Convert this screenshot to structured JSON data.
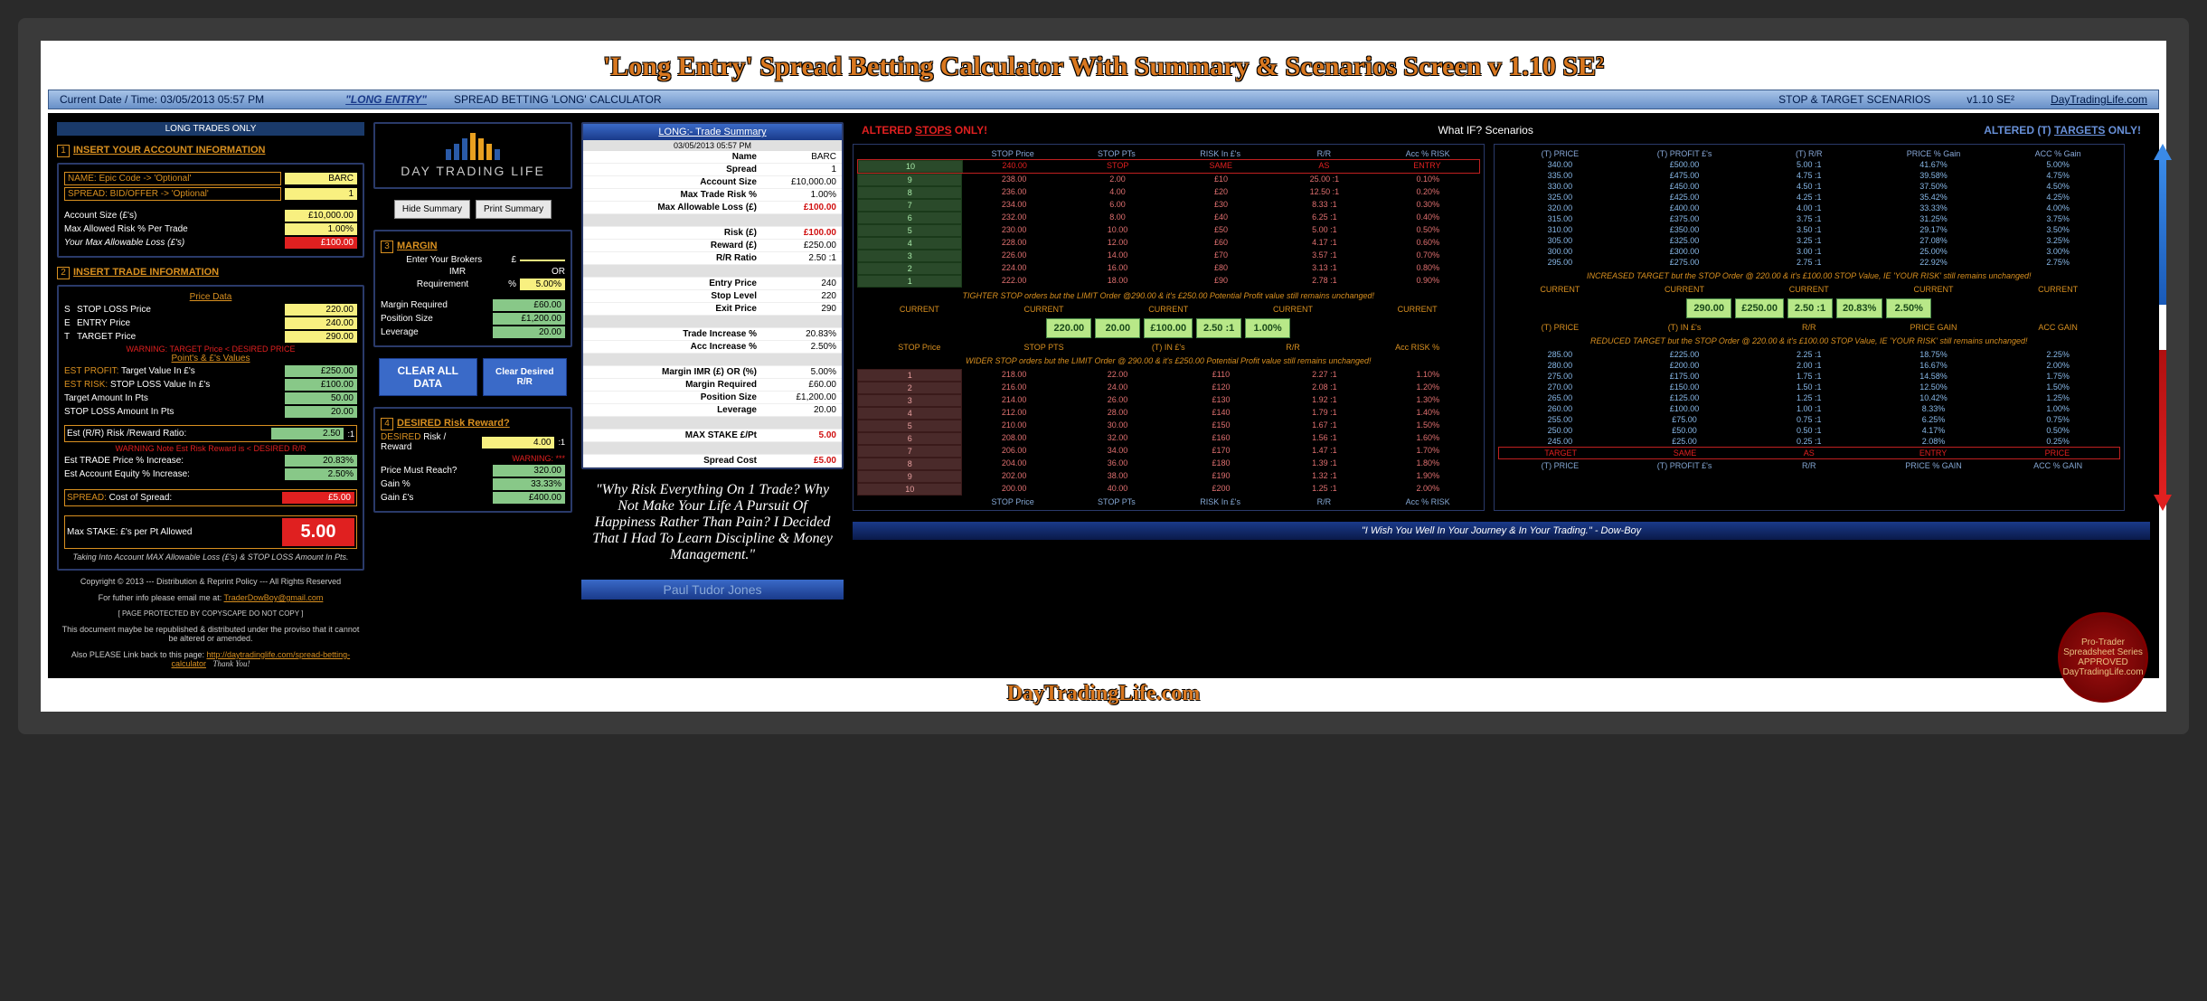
{
  "title": "'Long Entry' Spread Betting Calculator With Summary & Scenarios Screen v 1.10 SE²",
  "topbar": {
    "datetime_label": "Current Date / Time:",
    "datetime": "03/05/2013   05:57 PM",
    "longentry": "\"LONG ENTRY\"",
    "calc_title": "SPREAD BETTING 'LONG' CALCULATOR",
    "scenarios": "STOP & TARGET SCENARIOS",
    "version": "v1.10 SE²",
    "site": "DayTradingLife.com"
  },
  "long_trades_only": "LONG TRADES ONLY",
  "sec1_title": "INSERT YOUR ACCOUNT INFORMATION",
  "name_lbl": "NAME: Epic Code -> 'Optional'",
  "name_val": "BARC",
  "spread_lbl": "SPREAD: BID/OFFER -> 'Optional'",
  "spread_val": "1",
  "acct_size_lbl": "Account Size (£'s)",
  "acct_size_val": "£10,000.00",
  "max_risk_lbl": "Max Allowed Risk % Per Trade",
  "max_risk_val": "1.00%",
  "max_loss_lbl": "Your Max Allowable Loss (£'s)",
  "max_loss_val": "£100.00",
  "sec2_title": "INSERT TRADE INFORMATION",
  "price_data": "Price Data",
  "stop_price_lbl": "STOP LOSS Price",
  "stop_price_val": "220.00",
  "entry_price_lbl": "ENTRY Price",
  "entry_price_val": "240.00",
  "target_price_lbl": "TARGET  Price",
  "target_price_val": "290.00",
  "warn1": "WARNING: TARGET Price < DESIRED PRICE",
  "points_values": "Point's & £'s Values",
  "est_profit_lbl": "EST PROFIT: Target Value In £'s",
  "est_profit_val": "£250.00",
  "est_risk_lbl": "EST RISK: STOP LOSS Value In £'s",
  "est_risk_val": "£100.00",
  "target_pts_lbl": "Target Amount In Pts",
  "target_pts_val": "50.00",
  "stop_pts_lbl": "STOP LOSS Amount In Pts",
  "stop_pts_val": "20.00",
  "rr_lbl": "Est (R/R) Risk /Reward Ratio:",
  "rr_val": "2.50",
  "warn2": "WARNING Note Est Risk Reward is < DESIRED R/R",
  "trade_inc_lbl": "Est TRADE Price % Increase:",
  "trade_inc_val": "20.83%",
  "equity_inc_lbl": "Est Account Equity % Increase:",
  "equity_inc_val": "2.50%",
  "spread_cost_lbl": "SPREAD: Cost of Spread:",
  "spread_cost_val": "£5.00",
  "max_stake_lbl": "Max STAKE:  £'s per Pt Allowed",
  "max_stake_val": "5.00",
  "max_stake_note": "Taking Into Account MAX Allowable Loss (£'s) & STOP LOSS Amount In Pts.",
  "logo_text": "DAY TRADING LIFE",
  "hide_summary": "Hide Summary",
  "print_summary": "Print Summary",
  "margin_title": "MARGIN",
  "broker_lbl": "Enter Your Brokers",
  "imr_lbl": "IMR",
  "req_lbl": "Requirement",
  "imr_pct": "5.00%",
  "or_lbl": "OR",
  "margin_req_lbl": "Margin Required",
  "margin_req_val": "£60.00",
  "pos_size_lbl": "Position Size",
  "pos_size_val": "£1,200.00",
  "leverage_lbl": "Leverage",
  "leverage_val": "20.00",
  "clear_all": "CLEAR ALL DATA",
  "clear_rr": "Clear Desired R/R",
  "desired_title": "DESIRED Risk Reward?",
  "desired_rr_lbl": "DESIRED Risk / Reward",
  "desired_rr_val": "4.00",
  "warn3": "WARNING: ***",
  "price_reach_lbl": "Price Must Reach?",
  "price_reach_val": "320.00",
  "gain_pct_lbl": "Gain %",
  "gain_pct_val": "33.33%",
  "gain_gbp_lbl": "Gain £'s",
  "gain_gbp_val": "£400.00",
  "copyright": "Copyright © 2013  --- Distribution & Reprint Policy --- All Rights Reserved",
  "email_line": "For futher info please email me at: ",
  "email": "TraderDowBoy@gmail.com",
  "copyscape": "[ PAGE PROTECTED BY COPYSCAPE  DO NOT COPY ]",
  "doc_note": "This document maybe be republished & distributed under the proviso that it cannot be altered or amended.",
  "link_back": "Also PLEASE Link back to this page: ",
  "link_url": "http://daytradinglife.com/spread-betting-calculator",
  "thank_you": "Thank You!",
  "summary_title": "LONG:- Trade Summary",
  "summary_dt": "03/05/2013  05:57 PM",
  "s_rows": [
    {
      "l": "Name",
      "v": "BARC"
    },
    {
      "l": "Spread",
      "v": "1"
    },
    {
      "l": "Account Size",
      "v": "£10,000.00"
    },
    {
      "l": "Max Trade Risk %",
      "v": "1.00%"
    },
    {
      "l": "Max Allowable Loss (£)",
      "v": "£100.00",
      "red": true
    },
    {
      "gap": true
    },
    {
      "l": "Risk (£)",
      "v": "£100.00",
      "red": true
    },
    {
      "l": "Reward (£)",
      "v": "£250.00"
    },
    {
      "l": "R/R Ratio",
      "v": "2.50 :1"
    },
    {
      "gap": true
    },
    {
      "l": "Entry Price",
      "v": "240"
    },
    {
      "l": "Stop Level",
      "v": "220"
    },
    {
      "l": "Exit Price",
      "v": "290"
    },
    {
      "gap": true
    },
    {
      "l": "Trade Increase %",
      "v": "20.83%"
    },
    {
      "l": "Acc Increase %",
      "v": "2.50%"
    },
    {
      "gap": true
    },
    {
      "l": "Margin IMR (£) OR (%)",
      "v": "5.00%"
    },
    {
      "l": "Margin Required",
      "v": "£60.00"
    },
    {
      "l": "Position Size",
      "v": "£1,200.00"
    },
    {
      "l": "Leverage",
      "v": "20.00"
    },
    {
      "gap": true
    },
    {
      "l": "MAX STAKE  £/Pt",
      "v": "5.00",
      "red": true
    },
    {
      "gap": true
    },
    {
      "l": "Spread Cost",
      "v": "£5.00",
      "red": true
    }
  ],
  "quote": "\"Why Risk Everything On 1 Trade? Why Not Make Your Life A Pursuit Of Happiness Rather Than Pain? I Decided That I Had To Learn Discipline & Money Management.\"",
  "quote_author": "Paul Tudor Jones",
  "scen_stops_hdr": "ALTERED STOPS ONLY!",
  "scen_whatif": "What IF? Scenarios",
  "scen_targets_hdr": "ALTERED (T) TARGETS ONLY!",
  "left_th": [
    "STOP Price",
    "STOP PTs",
    "RISK In £'s",
    "R/R",
    "Acc % RISK"
  ],
  "right_th": [
    "(T) PRICE",
    "(T) PROFIT £'s",
    "(T) R/R",
    "PRICE % Gain",
    "ACC % Gain"
  ],
  "left_top": [
    {
      "n": "10",
      "c": [
        "240.00",
        "STOP",
        "SAME",
        "AS",
        "ENTRY"
      ],
      "spec": "red-border"
    },
    {
      "n": "9",
      "c": [
        "238.00",
        "2.00",
        "£10",
        "25.00 :1",
        "0.10%"
      ]
    },
    {
      "n": "8",
      "c": [
        "236.00",
        "4.00",
        "£20",
        "12.50 :1",
        "0.20%"
      ]
    },
    {
      "n": "7",
      "c": [
        "234.00",
        "6.00",
        "£30",
        "8.33 :1",
        "0.30%"
      ]
    },
    {
      "n": "6",
      "c": [
        "232.00",
        "8.00",
        "£40",
        "6.25 :1",
        "0.40%"
      ]
    },
    {
      "n": "5",
      "c": [
        "230.00",
        "10.00",
        "£50",
        "5.00 :1",
        "0.50%"
      ]
    },
    {
      "n": "4",
      "c": [
        "228.00",
        "12.00",
        "£60",
        "4.17 :1",
        "0.60%"
      ]
    },
    {
      "n": "3",
      "c": [
        "226.00",
        "14.00",
        "£70",
        "3.57 :1",
        "0.70%"
      ]
    },
    {
      "n": "2",
      "c": [
        "224.00",
        "16.00",
        "£80",
        "3.13 :1",
        "0.80%"
      ]
    },
    {
      "n": "1",
      "c": [
        "222.00",
        "18.00",
        "£90",
        "2.78 :1",
        "0.90%"
      ]
    }
  ],
  "right_top": [
    {
      "c": [
        "340.00",
        "£500.00",
        "5.00 :1",
        "41.67%",
        "5.00%"
      ]
    },
    {
      "c": [
        "335.00",
        "£475.00",
        "4.75 :1",
        "39.58%",
        "4.75%"
      ]
    },
    {
      "c": [
        "330.00",
        "£450.00",
        "4.50 :1",
        "37.50%",
        "4.50%"
      ]
    },
    {
      "c": [
        "325.00",
        "£425.00",
        "4.25 :1",
        "35.42%",
        "4.25%"
      ]
    },
    {
      "c": [
        "320.00",
        "£400.00",
        "4.00 :1",
        "33.33%",
        "4.00%"
      ]
    },
    {
      "c": [
        "315.00",
        "£375.00",
        "3.75 :1",
        "31.25%",
        "3.75%"
      ]
    },
    {
      "c": [
        "310.00",
        "£350.00",
        "3.50 :1",
        "29.17%",
        "3.50%"
      ]
    },
    {
      "c": [
        "305.00",
        "£325.00",
        "3.25 :1",
        "27.08%",
        "3.25%"
      ]
    },
    {
      "c": [
        "300.00",
        "£300.00",
        "3.00 :1",
        "25.00%",
        "3.00%"
      ]
    },
    {
      "c": [
        "295.00",
        "£275.00",
        "2.75 :1",
        "22.92%",
        "2.75%"
      ]
    }
  ],
  "left_note1": "TIGHTER STOP orders but the LIMIT Order @290.00 & it's £250.00 Potential Profit value still remains unchanged!",
  "right_note1": "INCREASED TARGET but the STOP Order @ 220.00 & it's £100.00 STOP Value, IE 'YOUR RISK' still remains unchanged!",
  "left_current_lbls": [
    "CURRENT",
    "CURRENT",
    "CURRENT",
    "CURRENT",
    "CURRENT"
  ],
  "left_current_vals": [
    "220.00",
    "20.00",
    "£100.00",
    "2.50 :1",
    "1.00%"
  ],
  "left_current_sub": [
    "STOP Price",
    "STOP PTS",
    "(T) IN £'s",
    "R/R",
    "Acc RISK %"
  ],
  "right_current_vals": [
    "290.00",
    "£250.00",
    "2.50 :1",
    "20.83%",
    "2.50%"
  ],
  "right_current_sub": [
    "(T) PRICE",
    "(T) IN £'s",
    "R/R",
    "PRICE GAIN",
    "ACC GAIN"
  ],
  "left_note2": "WIDER STOP orders but the LIMIT Order @ 290.00 & it's £250.00 Potential Profit value still remains unchanged!",
  "right_note2": "REDUCED TARGET but the STOP Order @ 220.00 & it's £100.00 STOP Value, IE 'YOUR RISK' still remains unchanged!",
  "left_bot": [
    {
      "n": "1",
      "c": [
        "218.00",
        "22.00",
        "£110",
        "2.27 :1",
        "1.10%"
      ]
    },
    {
      "n": "2",
      "c": [
        "216.00",
        "24.00",
        "£120",
        "2.08 :1",
        "1.20%"
      ]
    },
    {
      "n": "3",
      "c": [
        "214.00",
        "26.00",
        "£130",
        "1.92 :1",
        "1.30%"
      ]
    },
    {
      "n": "4",
      "c": [
        "212.00",
        "28.00",
        "£140",
        "1.79 :1",
        "1.40%"
      ]
    },
    {
      "n": "5",
      "c": [
        "210.00",
        "30.00",
        "£150",
        "1.67 :1",
        "1.50%"
      ]
    },
    {
      "n": "6",
      "c": [
        "208.00",
        "32.00",
        "£160",
        "1.56 :1",
        "1.60%"
      ]
    },
    {
      "n": "7",
      "c": [
        "206.00",
        "34.00",
        "£170",
        "1.47 :1",
        "1.70%"
      ]
    },
    {
      "n": "8",
      "c": [
        "204.00",
        "36.00",
        "£180",
        "1.39 :1",
        "1.80%"
      ]
    },
    {
      "n": "9",
      "c": [
        "202.00",
        "38.00",
        "£190",
        "1.32 :1",
        "1.90%"
      ]
    },
    {
      "n": "10",
      "c": [
        "200.00",
        "40.00",
        "£200",
        "1.25 :1",
        "2.00%"
      ]
    }
  ],
  "right_bot": [
    {
      "c": [
        "285.00",
        "£225.00",
        "2.25 :1",
        "18.75%",
        "2.25%"
      ]
    },
    {
      "c": [
        "280.00",
        "£200.00",
        "2.00 :1",
        "16.67%",
        "2.00%"
      ]
    },
    {
      "c": [
        "275.00",
        "£175.00",
        "1.75 :1",
        "14.58%",
        "1.75%"
      ]
    },
    {
      "c": [
        "270.00",
        "£150.00",
        "1.50 :1",
        "12.50%",
        "1.50%"
      ]
    },
    {
      "c": [
        "265.00",
        "£125.00",
        "1.25 :1",
        "10.42%",
        "1.25%"
      ]
    },
    {
      "c": [
        "260.00",
        "£100.00",
        "1.00 :1",
        "8.33%",
        "1.00%"
      ]
    },
    {
      "c": [
        "255.00",
        "£75.00",
        "0.75 :1",
        "6.25%",
        "0.75%"
      ]
    },
    {
      "c": [
        "250.00",
        "£50.00",
        "0.50 :1",
        "4.17%",
        "0.50%"
      ]
    },
    {
      "c": [
        "245.00",
        "£25.00",
        "0.25 :1",
        "2.08%",
        "0.25%"
      ]
    },
    {
      "c": [
        "TARGET",
        "SAME",
        "AS",
        "ENTRY",
        "PRICE"
      ],
      "spec": "red-border"
    }
  ],
  "left_footer": [
    "STOP Price",
    "STOP PTs",
    "RISK In £'s",
    "R/R",
    "Acc % RISK"
  ],
  "right_footer": [
    "(T) PRICE",
    "(T) PROFIT £'s",
    "R/R",
    "PRICE % GAIN",
    "ACC % GAIN"
  ],
  "bottom_quote": "\"I Wish You Well In Your Journey & In Your Trading.\"  - Dow-Boy",
  "bottom_brand": "DayTradingLife.com",
  "seal_text": "Pro-Trader Spreadsheet Series APPROVED DayTradingLife.com"
}
